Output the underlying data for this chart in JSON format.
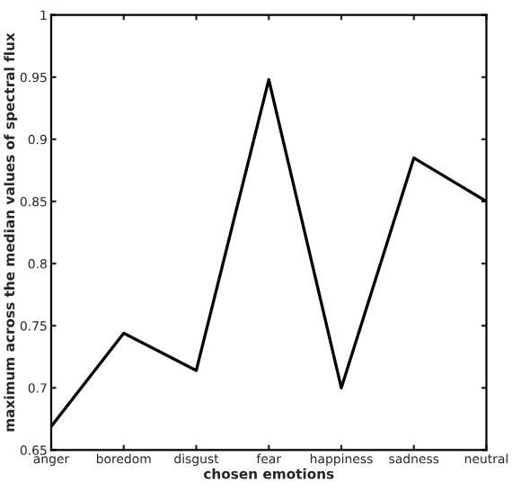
{
  "chart_data": {
    "type": "line",
    "xlabel": "chosen emotions",
    "ylabel": "maximum across the median values of spectral flux",
    "categories": [
      "anger",
      "boredom",
      "disgust",
      "fear",
      "happiness",
      "sadness",
      "neutral"
    ],
    "series": [
      {
        "color": "#000000",
        "values": [
          0.669,
          0.744,
          0.714,
          0.948,
          0.7,
          0.885,
          0.85
        ]
      }
    ],
    "ylim": [
      0.65,
      1
    ],
    "yticks": [
      0.65,
      0.7,
      0.75,
      0.8,
      0.85,
      0.9,
      0.95,
      1
    ],
    "grid": false,
    "legend": false
  }
}
